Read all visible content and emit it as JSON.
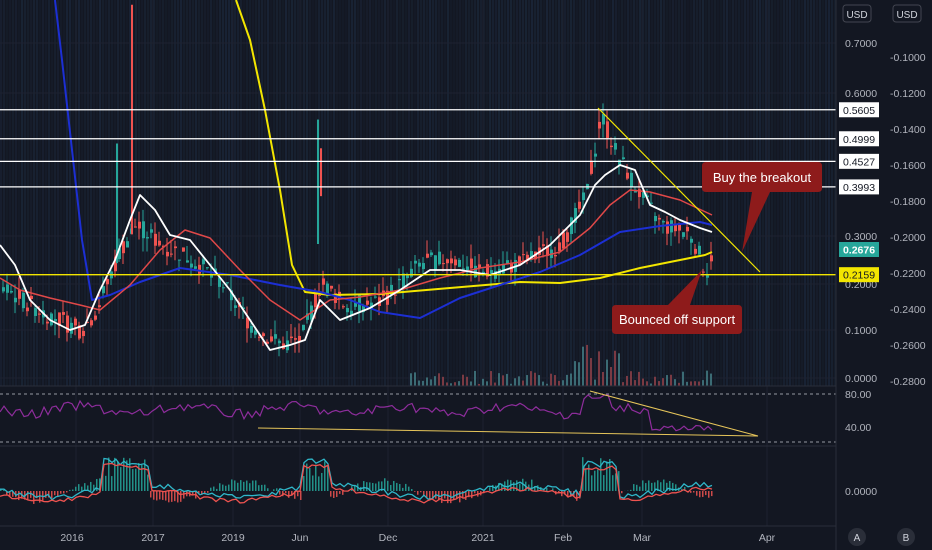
{
  "header": {
    "currency_left": "USD",
    "currency_right": "USD"
  },
  "footer": {
    "btn_a": "A",
    "btn_b": "B"
  },
  "colors": {
    "background": "#131722",
    "grid": "#1e2230",
    "axis_text": "#b2b5be",
    "candle_up": "#26a69a",
    "candle_down": "#ef5350",
    "white_ma": "#ffffff",
    "red_ma": "#e04848",
    "blue_ma": "#1c2fd4",
    "yellow_ma": "#f3e600",
    "oscillator": "#8e2d9c",
    "macd": "#2fb7c9",
    "signal": "#ef5350",
    "trendline": "#e6c55a",
    "annotation_bg": "#8e1b1b"
  },
  "chart_data": [
    {
      "type": "line",
      "name": "price",
      "x_tick_labels": [
        "2016",
        "2017",
        "2019",
        "Jun",
        "Dec",
        "2021",
        "Feb",
        "Mar",
        "Apr"
      ],
      "y_left_labels": [
        "0.7000",
        "0.6000",
        "0.3000",
        "0.2000",
        "0.1000",
        "0.0000"
      ],
      "y_right_labels": [
        "-0.1000",
        "-0.1200",
        "-0.1400",
        "-0.1600",
        "-0.1800",
        "-0.2000",
        "-0.2200",
        "-0.2400",
        "-0.2600",
        "-0.2800"
      ],
      "horizontal_levels": [
        {
          "value": 0.5605,
          "label": "0.5605",
          "color": "#ffffff"
        },
        {
          "value": 0.4999,
          "label": "0.4999",
          "color": "#ffffff"
        },
        {
          "value": 0.4527,
          "label": "0.4527",
          "color": "#ffffff"
        },
        {
          "value": 0.3993,
          "label": "0.3993",
          "color": "#ffffff"
        },
        {
          "value": 0.2159,
          "label": "0.2159",
          "color": "#f3e600"
        }
      ],
      "last_price": {
        "value": 0.2676,
        "label": "0.2676"
      },
      "annotations": [
        "Buy the breakout",
        "Bounced off support"
      ]
    },
    {
      "type": "line",
      "name": "oscillator",
      "y_labels": [
        "80.00",
        "40.00"
      ],
      "levels": [
        80,
        30
      ]
    },
    {
      "type": "line",
      "name": "macd",
      "y_labels": [
        "0.0000"
      ]
    }
  ]
}
